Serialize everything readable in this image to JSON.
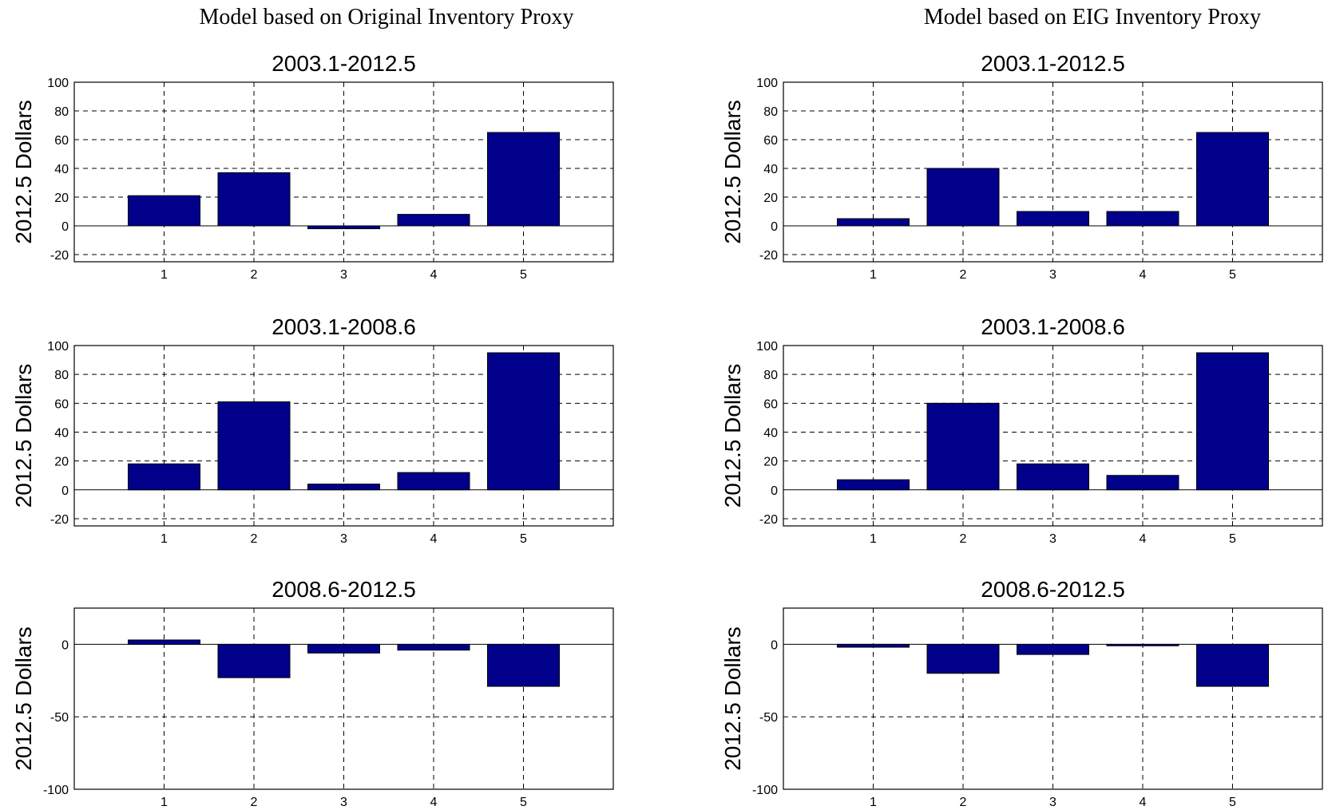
{
  "figure": {
    "columns": [
      {
        "title": "Model based on Original Inventory Proxy"
      },
      {
        "title": "Model based on EIG Inventory Proxy"
      }
    ],
    "bar_color": "#00008B"
  },
  "chart_data": [
    {
      "type": "bar",
      "title": "2003.1-2012.5",
      "ylabel": "2012.5 Dollars",
      "xlabel": "",
      "categories": [
        "1",
        "2",
        "3",
        "4",
        "5"
      ],
      "values": [
        21,
        37,
        -2,
        8,
        65
      ],
      "xlim": [
        0,
        6
      ],
      "ylim": [
        -25,
        100
      ],
      "yticks": [
        -20,
        0,
        20,
        40,
        60,
        80,
        100
      ],
      "grid": true
    },
    {
      "type": "bar",
      "title": "2003.1-2012.5",
      "ylabel": "2012.5 Dollars",
      "xlabel": "",
      "categories": [
        "1",
        "2",
        "3",
        "4",
        "5"
      ],
      "values": [
        5,
        40,
        10,
        10,
        65
      ],
      "xlim": [
        0,
        6
      ],
      "ylim": [
        -25,
        100
      ],
      "yticks": [
        -20,
        0,
        20,
        40,
        60,
        80,
        100
      ],
      "grid": true
    },
    {
      "type": "bar",
      "title": "2003.1-2008.6",
      "ylabel": "2012.5 Dollars",
      "xlabel": "",
      "categories": [
        "1",
        "2",
        "3",
        "4",
        "5"
      ],
      "values": [
        18,
        61,
        4,
        12,
        95
      ],
      "xlim": [
        0,
        6
      ],
      "ylim": [
        -25,
        100
      ],
      "yticks": [
        -20,
        0,
        20,
        40,
        60,
        80,
        100
      ],
      "grid": true
    },
    {
      "type": "bar",
      "title": "2003.1-2008.6",
      "ylabel": "2012.5 Dollars",
      "xlabel": "",
      "categories": [
        "1",
        "2",
        "3",
        "4",
        "5"
      ],
      "values": [
        7,
        60,
        18,
        10,
        95
      ],
      "xlim": [
        0,
        6
      ],
      "ylim": [
        -25,
        100
      ],
      "yticks": [
        -20,
        0,
        20,
        40,
        60,
        80,
        100
      ],
      "grid": true
    },
    {
      "type": "bar",
      "title": "2008.6-2012.5",
      "ylabel": "2012.5 Dollars",
      "xlabel": "",
      "categories": [
        "1",
        "2",
        "3",
        "4",
        "5"
      ],
      "values": [
        3,
        -23,
        -6,
        -4,
        -29
      ],
      "xlim": [
        0,
        6
      ],
      "ylim": [
        -100,
        25
      ],
      "yticks": [
        -100,
        -50,
        0
      ],
      "grid": true
    },
    {
      "type": "bar",
      "title": "2008.6-2012.5",
      "ylabel": "2012.5 Dollars",
      "xlabel": "",
      "categories": [
        "1",
        "2",
        "3",
        "4",
        "5"
      ],
      "values": [
        -2,
        -20,
        -7,
        -1,
        -29
      ],
      "xlim": [
        0,
        6
      ],
      "ylim": [
        -100,
        25
      ],
      "yticks": [
        -100,
        -50,
        0
      ],
      "grid": true
    }
  ]
}
